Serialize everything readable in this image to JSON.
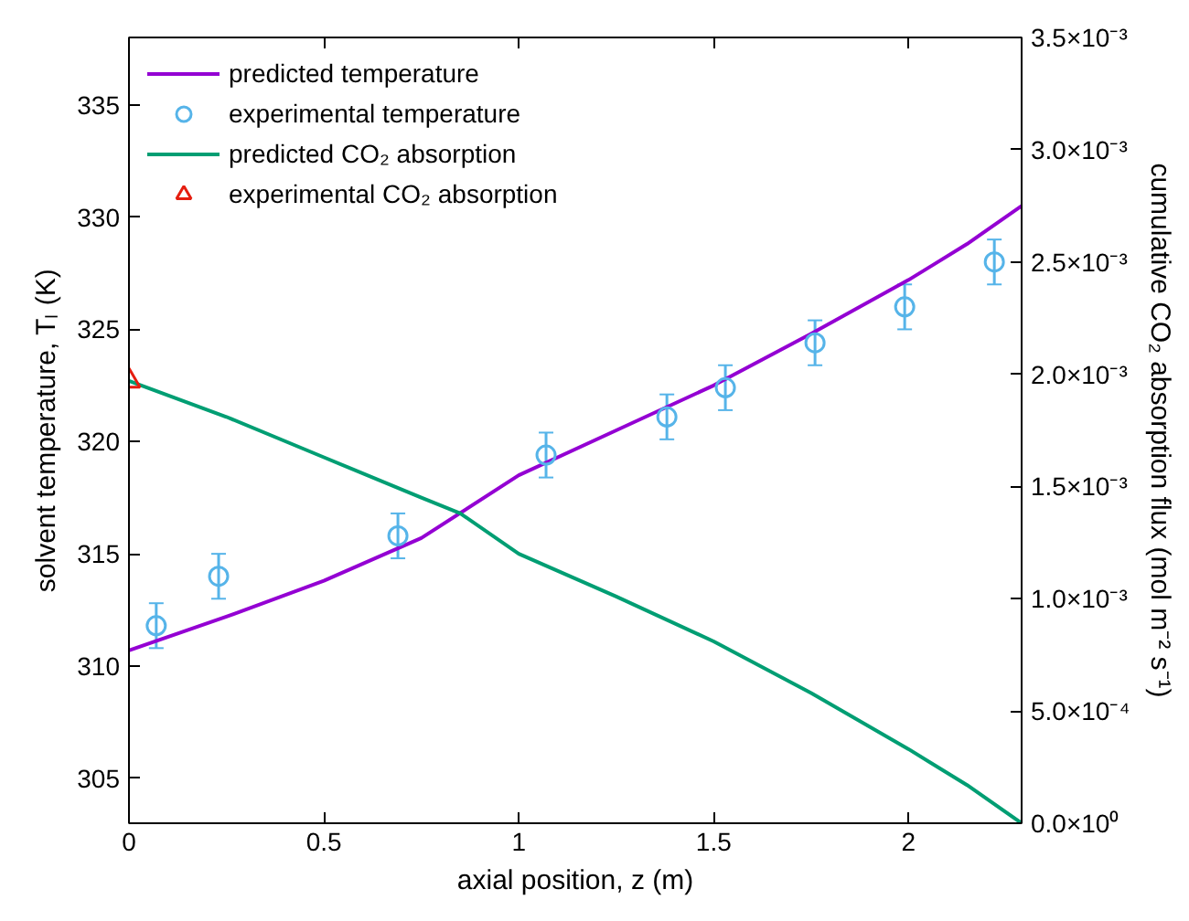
{
  "chart_data": {
    "type": "line",
    "xlabel": "axial position, z (m)",
    "ylabel": "solvent temperature, Tₗ (K)",
    "y2label": "cumulative CO₂ absorption flux (mol m⁻² s⁻¹)",
    "xlim": [
      0,
      2.29
    ],
    "xticks": [
      0,
      0.5,
      1,
      1.5,
      2
    ],
    "ylim": [
      303,
      338
    ],
    "yticks": [
      305,
      310,
      315,
      320,
      325,
      330,
      335
    ],
    "y2lim": [
      0,
      0.0035
    ],
    "y2ticks": [
      {
        "value": 0,
        "label": "0.0×10⁰"
      },
      {
        "value": 0.0005,
        "label": "5.0×10⁻⁴"
      },
      {
        "value": 0.001,
        "label": "1.0×10⁻³"
      },
      {
        "value": 0.0015,
        "label": "1.5×10⁻³"
      },
      {
        "value": 0.002,
        "label": "2.0×10⁻³"
      },
      {
        "value": 0.0025,
        "label": "2.5×10⁻³"
      },
      {
        "value": 0.003,
        "label": "3.0×10⁻³"
      },
      {
        "value": 0.0035,
        "label": "3.5×10⁻³"
      }
    ],
    "legend": "top left",
    "grid": false,
    "series": [
      {
        "name": "predicted temperature",
        "color": "#9400d3",
        "x": [
          0,
          0.25,
          0.5,
          0.75,
          1,
          1.25,
          1.5,
          1.75,
          2,
          2.15,
          2.29
        ],
        "values": [
          310.7,
          312.2,
          313.8,
          315.7,
          318.5,
          320.5,
          322.5,
          324.8,
          327.2,
          328.8,
          330.5
        ]
      },
      {
        "name": "experimental temperature",
        "type": "scatter",
        "marker": "circle",
        "color": "#56b4e9",
        "x": [
          0.07,
          0.23,
          0.69,
          1.07,
          1.38,
          1.53,
          1.76,
          1.99,
          2.22
        ],
        "values": [
          311.8,
          314.0,
          315.8,
          319.4,
          321.1,
          322.4,
          324.4,
          326.0,
          328.0
        ],
        "errors": [
          1,
          1,
          1,
          1,
          1,
          1,
          1,
          1,
          1
        ]
      },
      {
        "name": "predicted CO₂ absorption",
        "axis": "y2",
        "color": "#009e73",
        "x": [
          0,
          0.25,
          0.5,
          0.75,
          0.85,
          1,
          1.25,
          1.5,
          1.75,
          2,
          2.15,
          2.29
        ],
        "values": [
          0.00197,
          0.00181,
          0.00163,
          0.00145,
          0.00138,
          0.0012,
          0.00101,
          0.00081,
          0.00058,
          0.00033,
          0.00017,
          0
        ]
      },
      {
        "name": "experimental CO₂ absorption",
        "type": "scatter",
        "marker": "triangle",
        "axis": "y2",
        "color": "#e51e10",
        "x": [
          0
        ],
        "values": [
          0.00197
        ]
      }
    ]
  }
}
